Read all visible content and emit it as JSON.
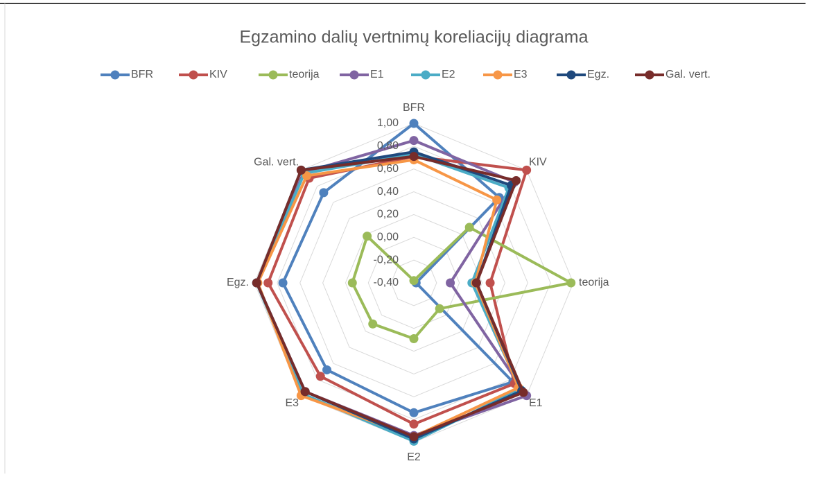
{
  "chart_data": {
    "type": "radar",
    "title": "Egzamino dalių vertnimų koreliacijų diagrama",
    "categories": [
      "BFR",
      "KIV",
      "teorija",
      "E1",
      "E2",
      "E3",
      "Egz.",
      "Gal. vert."
    ],
    "ylim": [
      -0.4,
      1.0
    ],
    "yticks": [
      {
        "value": -0.4,
        "label": "-0,40"
      },
      {
        "value": -0.2,
        "label": "-0,20"
      },
      {
        "value": 0,
        "label": "0,00"
      },
      {
        "value": 0.2,
        "label": "0,20"
      },
      {
        "value": 0.4,
        "label": "0,40"
      },
      {
        "value": 0.6,
        "label": "0,60"
      },
      {
        "value": 0.8,
        "label": "0,80"
      },
      {
        "value": 1.0,
        "label": "1,00"
      }
    ],
    "grid": true,
    "legend": "top",
    "series": [
      {
        "name": "BFR",
        "color": "#4f81bd",
        "values": [
          1.0,
          0.66,
          -0.38,
          0.83,
          0.74,
          0.68,
          0.75,
          0.72
        ]
      },
      {
        "name": "KIV",
        "color": "#c0504d",
        "values": [
          0.71,
          1.0,
          0.27,
          0.85,
          0.84,
          0.76,
          0.88,
          0.9
        ]
      },
      {
        "name": "teorija",
        "color": "#9bbb59",
        "values": [
          -0.38,
          0.29,
          0.98,
          -0.08,
          0.09,
          0.11,
          0.14,
          0.18
        ]
      },
      {
        "name": "E1",
        "color": "#8064a2",
        "values": [
          0.85,
          0.85,
          -0.08,
          1.0,
          0.94,
          0.95,
          0.98,
          0.97
        ]
      },
      {
        "name": "E2",
        "color": "#4bacc6",
        "values": [
          0.73,
          0.78,
          0.11,
          0.92,
          0.99,
          0.98,
          0.98,
          0.96
        ]
      },
      {
        "name": "E3",
        "color": "#f79646",
        "values": [
          0.68,
          0.63,
          0.14,
          0.9,
          0.95,
          1.0,
          0.97,
          0.93
        ]
      },
      {
        "name": "Egz.",
        "color": "#1f497d",
        "values": [
          0.75,
          0.81,
          0.15,
          0.94,
          0.97,
          0.95,
          0.98,
          1.0
        ]
      },
      {
        "name": "Gal. vert.",
        "color": "#772c2a",
        "values": [
          0.71,
          0.87,
          0.15,
          0.96,
          0.95,
          0.95,
          0.98,
          1.0
        ]
      }
    ]
  }
}
